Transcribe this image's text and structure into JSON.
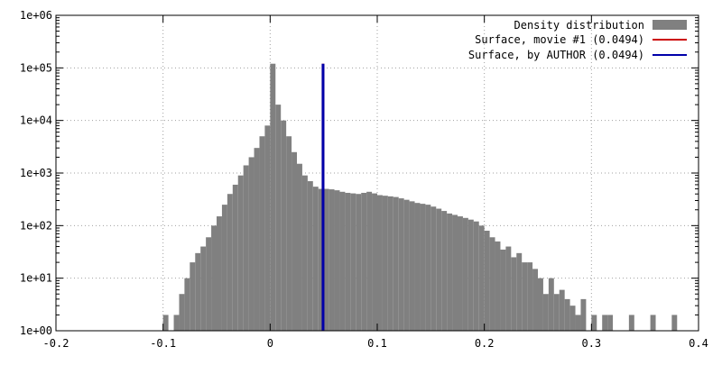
{
  "chart_data": {
    "type": "bar",
    "title": "",
    "xlabel": "",
    "ylabel": "",
    "yscale": "log",
    "xlim": [
      -0.2,
      0.4
    ],
    "ylim": [
      1,
      1000000
    ],
    "grid": true,
    "legend_position": "top-right",
    "x_ticks": [
      -0.2,
      -0.1,
      0,
      0.1,
      0.2,
      0.3,
      0.4
    ],
    "x_tick_labels": [
      "-0.2",
      "-0.1",
      "0",
      "0.1",
      "0.2",
      "0.3",
      "0.4"
    ],
    "y_ticks": [
      1,
      10,
      100,
      1000,
      10000,
      100000,
      1000000
    ],
    "y_tick_labels": [
      "1e+00",
      "1e+01",
      "1e+02",
      "1e+03",
      "1e+04",
      "1e+05",
      "1e+06"
    ],
    "bin_width": 0.005,
    "series": [
      {
        "name": "Density distribution",
        "color": "#808080",
        "bins": [
          [
            -0.1,
            2
          ],
          [
            -0.09,
            2
          ],
          [
            -0.085,
            5
          ],
          [
            -0.08,
            10
          ],
          [
            -0.075,
            20
          ],
          [
            -0.07,
            30
          ],
          [
            -0.065,
            40
          ],
          [
            -0.06,
            60
          ],
          [
            -0.055,
            100
          ],
          [
            -0.05,
            150
          ],
          [
            -0.045,
            250
          ],
          [
            -0.04,
            400
          ],
          [
            -0.035,
            600
          ],
          [
            -0.03,
            900
          ],
          [
            -0.025,
            1400
          ],
          [
            -0.02,
            2000
          ],
          [
            -0.015,
            3000
          ],
          [
            -0.01,
            5000
          ],
          [
            -0.005,
            8000
          ],
          [
            0,
            120000
          ],
          [
            0.005,
            20000
          ],
          [
            0.01,
            10000
          ],
          [
            0.015,
            5000
          ],
          [
            0.02,
            2500
          ],
          [
            0.025,
            1500
          ],
          [
            0.03,
            900
          ],
          [
            0.035,
            700
          ],
          [
            0.04,
            550
          ],
          [
            0.045,
            500
          ],
          [
            0.05,
            500
          ],
          [
            0.055,
            490
          ],
          [
            0.06,
            470
          ],
          [
            0.065,
            440
          ],
          [
            0.07,
            420
          ],
          [
            0.075,
            410
          ],
          [
            0.08,
            400
          ],
          [
            0.085,
            420
          ],
          [
            0.09,
            440
          ],
          [
            0.095,
            410
          ],
          [
            0.1,
            380
          ],
          [
            0.105,
            370
          ],
          [
            0.11,
            360
          ],
          [
            0.115,
            350
          ],
          [
            0.12,
            330
          ],
          [
            0.125,
            310
          ],
          [
            0.13,
            290
          ],
          [
            0.135,
            270
          ],
          [
            0.14,
            260
          ],
          [
            0.145,
            250
          ],
          [
            0.15,
            230
          ],
          [
            0.155,
            210
          ],
          [
            0.16,
            190
          ],
          [
            0.165,
            170
          ],
          [
            0.17,
            160
          ],
          [
            0.175,
            150
          ],
          [
            0.18,
            140
          ],
          [
            0.185,
            130
          ],
          [
            0.19,
            120
          ],
          [
            0.195,
            100
          ],
          [
            0.2,
            80
          ],
          [
            0.205,
            60
          ],
          [
            0.21,
            50
          ],
          [
            0.215,
            35
          ],
          [
            0.22,
            40
          ],
          [
            0.225,
            25
          ],
          [
            0.23,
            30
          ],
          [
            0.235,
            20
          ],
          [
            0.24,
            20
          ],
          [
            0.245,
            15
          ],
          [
            0.25,
            10
          ],
          [
            0.255,
            5
          ],
          [
            0.26,
            10
          ],
          [
            0.265,
            5
          ],
          [
            0.27,
            6
          ],
          [
            0.275,
            4
          ],
          [
            0.28,
            3
          ],
          [
            0.285,
            2
          ],
          [
            0.29,
            4
          ],
          [
            0.3,
            2
          ],
          [
            0.31,
            2
          ],
          [
            0.315,
            2
          ],
          [
            0.335,
            2
          ],
          [
            0.355,
            2
          ],
          [
            0.375,
            2
          ]
        ]
      },
      {
        "name": "Surface, movie #1 (0.0494)",
        "color": "#cc0000",
        "x": 0.0494,
        "y_top": 120000
      },
      {
        "name": "Surface, by AUTHOR (0.0494)",
        "color": "#0000aa",
        "x": 0.0494,
        "y_top": 120000
      }
    ]
  }
}
